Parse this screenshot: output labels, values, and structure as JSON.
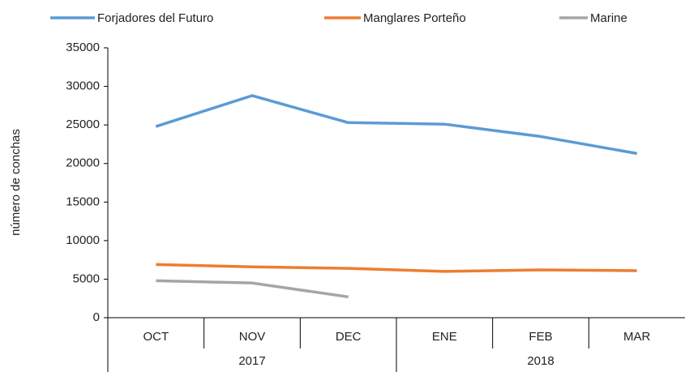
{
  "chart_data": {
    "type": "line",
    "y_label": "número de conchas",
    "categories": [
      "OCT",
      "NOV",
      "DEC",
      "ENE",
      "FEB",
      "MAR"
    ],
    "category_groups": [
      {
        "label": "2017",
        "count": 3
      },
      {
        "label": "2018",
        "count": 3
      }
    ],
    "series": [
      {
        "name": "Forjadores del Futuro",
        "color": "#5b9bd5",
        "values": [
          24800,
          28800,
          25300,
          25100,
          23500,
          21300
        ]
      },
      {
        "name": "Manglares Porteño",
        "color": "#ed7d31",
        "values": [
          6900,
          6600,
          6400,
          6000,
          6200,
          6100
        ]
      },
      {
        "name": "Marine",
        "color": "#a5a5a5",
        "values": [
          4800,
          4500,
          2700,
          null,
          null,
          null
        ]
      }
    ],
    "ylim": [
      0,
      35000
    ],
    "yticks": [
      0,
      5000,
      10000,
      15000,
      20000,
      25000,
      30000,
      35000
    ],
    "grid": false
  }
}
